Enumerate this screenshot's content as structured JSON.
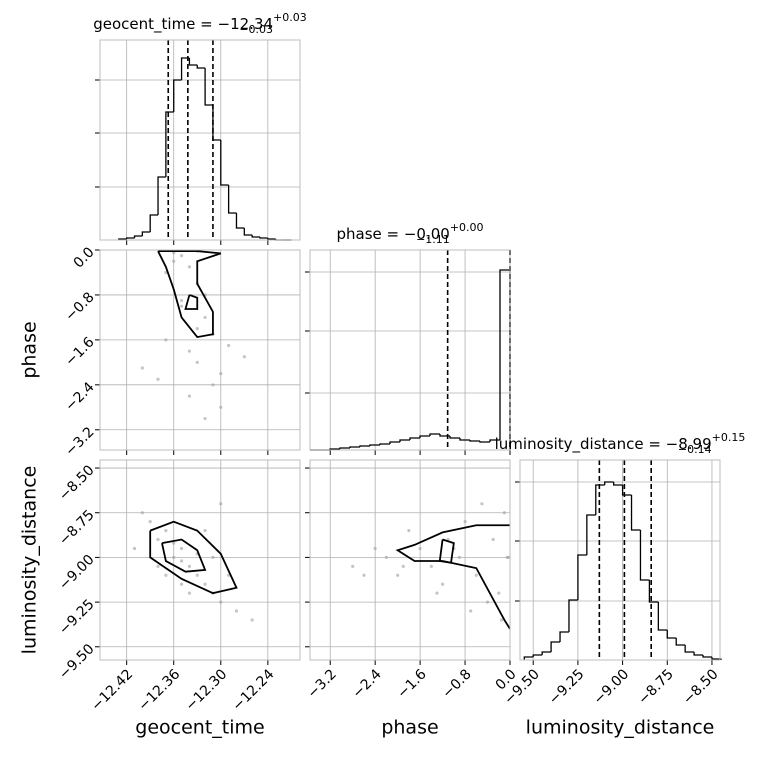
{
  "chart_data": {
    "type": "corner",
    "grid": true,
    "color": "#000000",
    "point_color": "#9e9e9e",
    "variables": [
      {
        "label": "geocent_time",
        "title": "geocent_time = −12.34",
        "title_upper": "+0.03",
        "title_lower": "−0.03",
        "lim": [
          -12.454,
          -12.199
        ],
        "ticks": [
          {
            "value": -12.42,
            "label": "−12.42"
          },
          {
            "value": -12.36,
            "label": "−12.36"
          },
          {
            "value": -12.3,
            "label": "−12.30"
          },
          {
            "value": -12.24,
            "label": "−12.24"
          }
        ],
        "bins": [
          -12.43,
          -12.42,
          -12.41,
          -12.4,
          -12.39,
          -12.38,
          -12.37,
          -12.36,
          -12.35,
          -12.34,
          -12.33,
          -12.32,
          -12.31,
          -12.3,
          -12.29,
          -12.28,
          -12.27,
          -12.26,
          -12.25,
          -12.24,
          -12.23,
          -12.22,
          -12.21
        ],
        "counts": [
          1,
          2,
          4,
          8,
          25,
          63,
          128,
          160,
          182,
          175,
          172,
          135,
          100,
          55,
          27,
          12,
          5,
          3,
          2,
          1,
          0,
          0
        ],
        "hist_ylim": [
          0,
          200
        ],
        "hist_yticks": [
          53,
          107,
          160
        ],
        "quantiles": [
          -12.367,
          -12.342,
          -12.31
        ]
      },
      {
        "label": "phase",
        "title": "phase = −0.00",
        "title_upper": "+0.00",
        "title_lower": "−1.11",
        "lim": [
          -3.56,
          0.0
        ],
        "ticks": [
          {
            "value": -3.2,
            "label": "−3.2"
          },
          {
            "value": -2.4,
            "label": "−2.4"
          },
          {
            "value": -1.6,
            "label": "−1.6"
          },
          {
            "value": -0.8,
            "label": "−0.8"
          },
          {
            "value": 0.0,
            "label": "0.0"
          }
        ],
        "bins": [
          -3.56,
          -3.382,
          -3.204,
          -3.026,
          -2.848,
          -2.67,
          -2.492,
          -2.314,
          -2.136,
          -1.958,
          -1.78,
          -1.602,
          -1.424,
          -1.246,
          -1.068,
          -0.89,
          -0.712,
          -0.534,
          -0.356,
          -0.178,
          0.0
        ],
        "counts": [
          0,
          0,
          1,
          2,
          3,
          4,
          5,
          6,
          8,
          10,
          12,
          14,
          16,
          14,
          12,
          10,
          9,
          8,
          10,
          180
        ],
        "hist_ylim": [
          0,
          200
        ],
        "hist_yticks": [
          57,
          119,
          178
        ],
        "quantiles": [
          -1.11,
          0.0,
          0.0
        ]
      },
      {
        "label": "luminosity_distance",
        "title": "luminosity_distance = −8.99",
        "title_upper": "+0.15",
        "title_lower": "−0.14",
        "lim": [
          -9.574,
          -8.455
        ],
        "ticks": [
          {
            "value": -9.5,
            "label": "−9.50"
          },
          {
            "value": -9.25,
            "label": "−9.25"
          },
          {
            "value": -9.0,
            "label": "−9.00"
          },
          {
            "value": -8.75,
            "label": "−8.75"
          },
          {
            "value": -8.5,
            "label": "−8.50"
          }
        ],
        "bins": [
          -9.55,
          -9.5,
          -9.45,
          -9.4,
          -9.35,
          -9.3,
          -9.25,
          -9.2,
          -9.15,
          -9.1,
          -9.05,
          -9.0,
          -8.95,
          -8.9,
          -8.85,
          -8.8,
          -8.75,
          -8.7,
          -8.65,
          -8.6,
          -8.55,
          -8.5,
          -8.45
        ],
        "counts": [
          3,
          5,
          8,
          18,
          28,
          60,
          105,
          145,
          175,
          178,
          175,
          165,
          130,
          80,
          58,
          30,
          22,
          15,
          8,
          5,
          3,
          1
        ],
        "hist_ylim": [
          0,
          200
        ],
        "hist_yticks": [
          59,
          119,
          178
        ],
        "quantiles": [
          -9.13,
          -8.99,
          -8.84
        ]
      }
    ],
    "pairs": [
      {
        "x": [
          -12.36,
          -12.34,
          -12.33,
          -12.35,
          -12.32,
          -12.37,
          -12.31,
          -12.34,
          -12.33,
          -12.3,
          -12.38,
          -12.35,
          -12.32,
          -12.36,
          -12.29,
          -12.34,
          -12.31,
          -12.33,
          -12.4,
          -12.27,
          -12.35,
          -12.33,
          -12.3,
          -12.37,
          -12.32
        ],
        "y": [
          -0.05,
          -0.3,
          -0.6,
          -0.9,
          -1.2,
          -0.4,
          -1.5,
          -1.8,
          -2.0,
          -2.2,
          -2.3,
          -1.0,
          -0.8,
          -0.2,
          -1.7,
          -2.6,
          -2.4,
          -1.4,
          -2.1,
          -1.9,
          -0.1,
          -0.02,
          -2.8,
          -1.6,
          -3.0
        ],
        "contours": [
          {
            "x": [
              -12.38,
              -12.33,
              -12.3,
              -12.33,
              -12.33,
              -12.31,
              -12.31,
              -12.33,
              -12.35,
              -12.36,
              -12.37,
              -12.38
            ],
            "y": [
              -0.02,
              -0.02,
              -0.06,
              -0.2,
              -0.6,
              -1.1,
              -1.5,
              -1.55,
              -1.2,
              -0.7,
              -0.3,
              -0.02
            ]
          },
          {
            "x": [
              -12.34,
              -12.33,
              -12.33,
              -12.345,
              -12.34
            ],
            "y": [
              -0.8,
              -0.85,
              -1.05,
              -1.05,
              -0.8
            ]
          }
        ]
      },
      {
        "x": [
          -12.38,
          -12.36,
          -12.35,
          -12.34,
          -12.33,
          -12.37,
          -12.32,
          -12.31,
          -12.39,
          -12.3,
          -12.35,
          -12.28,
          -12.36,
          -12.4,
          -12.33,
          -12.29,
          -12.34,
          -12.37,
          -12.31,
          -12.26,
          -12.41,
          -12.32,
          -12.35,
          -12.3,
          -12.38
        ],
        "y": [
          -8.9,
          -9.0,
          -8.95,
          -9.05,
          -9.1,
          -8.85,
          -9.15,
          -9.2,
          -8.8,
          -9.25,
          -9.02,
          -9.3,
          -8.92,
          -8.75,
          -8.98,
          -9.1,
          -9.2,
          -9.1,
          -9.0,
          -9.35,
          -8.95,
          -8.85,
          -9.15,
          -8.7,
          -9.05
        ],
        "contours": [
          {
            "x": [
              -12.39,
              -12.36,
              -12.33,
              -12.3,
              -12.28,
              -12.31,
              -12.35,
              -12.39,
              -12.39
            ],
            "y": [
              -8.85,
              -8.8,
              -8.85,
              -8.98,
              -9.17,
              -9.2,
              -9.12,
              -9.0,
              -8.85
            ]
          },
          {
            "x": [
              -12.375,
              -12.35,
              -12.33,
              -12.32,
              -12.345,
              -12.37,
              -12.375
            ],
            "y": [
              -8.92,
              -8.9,
              -8.96,
              -9.07,
              -9.08,
              -9.02,
              -8.92
            ]
          }
        ]
      },
      {
        "x": [
          -0.05,
          -0.3,
          -0.6,
          -1.0,
          -1.4,
          -1.8,
          -2.2,
          -2.6,
          -0.2,
          -0.8,
          -1.2,
          -1.6,
          -2.0,
          -0.4,
          -0.1,
          -1.1,
          -2.4,
          -0.7,
          -1.9,
          -0.02,
          -0.5,
          -1.3,
          -2.8,
          -0.9,
          -0.15
        ],
        "y": [
          -9.0,
          -8.9,
          -9.1,
          -8.95,
          -9.05,
          -8.85,
          -9.0,
          -9.1,
          -9.2,
          -8.8,
          -9.15,
          -8.95,
          -9.1,
          -9.25,
          -8.75,
          -8.9,
          -8.95,
          -9.3,
          -9.05,
          -9.0,
          -8.7,
          -9.2,
          -9.05,
          -9.0,
          -9.35
        ],
        "contours": [
          {
            "x": [
              0.0,
              -0.6,
              -1.2,
              -1.7,
              -2.0,
              -1.7,
              -1.2,
              -0.6,
              -0.1,
              0.0
            ],
            "y": [
              -8.82,
              -8.82,
              -8.86,
              -8.93,
              -8.96,
              -9.02,
              -9.02,
              -9.06,
              -9.35,
              -9.4
            ]
          },
          {
            "x": [
              -1.2,
              -1.0,
              -1.05,
              -1.25,
              -1.2
            ],
            "y": [
              -8.9,
              -8.92,
              -9.03,
              -9.02,
              -8.9
            ]
          }
        ]
      }
    ]
  }
}
